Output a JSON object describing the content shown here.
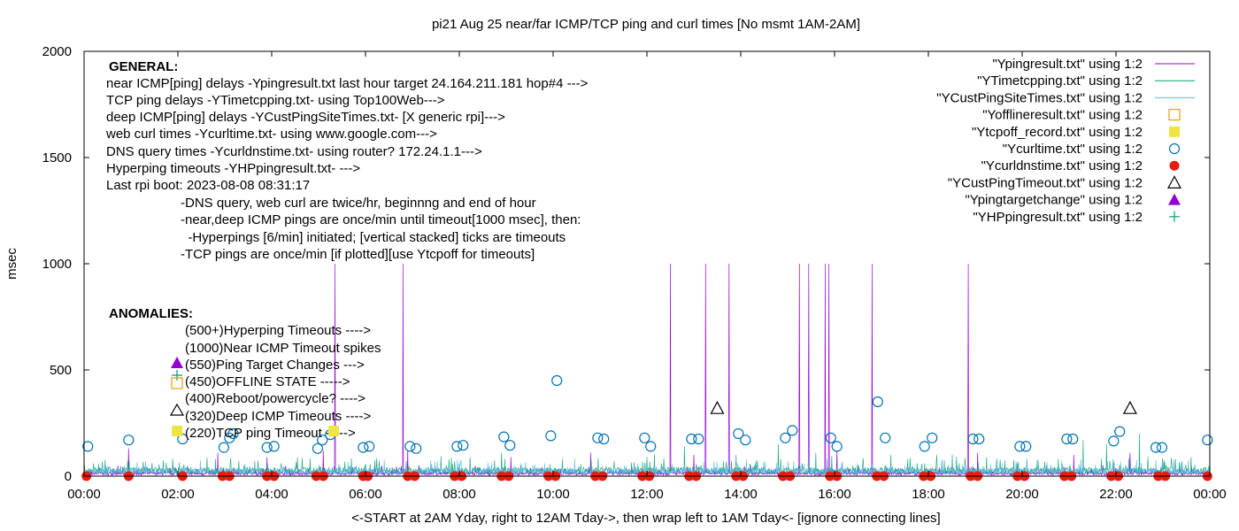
{
  "chart_data": {
    "type": "line",
    "title": "pi21 Aug 25  near/far ICMP/TCP ping and curl times [No msmt 1AM-2AM]",
    "xlabel": "<-START at 2AM Yday, right to 12AM Tday->, then wrap left to 1AM Tday<- [ignore connecting lines]",
    "ylabel": "msec",
    "xlim": [
      0,
      24
    ],
    "ylim": [
      0,
      2000
    ],
    "x_ticks": [
      "00:00",
      "02:00",
      "04:00",
      "06:00",
      "08:00",
      "10:00",
      "12:00",
      "14:00",
      "16:00",
      "18:00",
      "20:00",
      "22:00",
      "00:00"
    ],
    "y_ticks": [
      "0",
      "500",
      "1000",
      "1500",
      "2000"
    ],
    "legend_position": "top-right",
    "series": [
      {
        "name": "\"Ypingresult.txt\" using 1:2",
        "color": "#9400d3",
        "style": "line",
        "baseline": 15,
        "spikes": [
          [
            0.95,
            130
          ],
          [
            2.85,
            110
          ],
          [
            3.9,
            90
          ],
          [
            5.1,
            120
          ],
          [
            5.35,
            1000
          ],
          [
            6.8,
            1000
          ],
          [
            6.9,
            120
          ],
          [
            9.1,
            90
          ],
          [
            10.8,
            110
          ],
          [
            12.5,
            1000
          ],
          [
            13.0,
            100
          ],
          [
            13.25,
            1000
          ],
          [
            13.75,
            1000
          ],
          [
            15.25,
            1000
          ],
          [
            15.45,
            1000
          ],
          [
            15.8,
            1000
          ],
          [
            15.88,
            1000
          ],
          [
            16.05,
            120
          ],
          [
            16.8,
            1000
          ],
          [
            18.85,
            1000
          ],
          [
            19.05,
            110
          ],
          [
            21.1,
            100
          ],
          [
            22.3,
            110
          ]
        ]
      },
      {
        "name": "\"YTimetcpping.txt\" using 1:2",
        "color": "#009e73",
        "style": "line",
        "baseline": 30,
        "spikes": [
          [
            0.2,
            60
          ],
          [
            1.6,
            55
          ],
          [
            2.8,
            80
          ],
          [
            3.3,
            70
          ],
          [
            4.2,
            60
          ],
          [
            6.2,
            75
          ],
          [
            7.9,
            70
          ],
          [
            8.9,
            110
          ],
          [
            10.2,
            80
          ],
          [
            11.3,
            70
          ],
          [
            12.8,
            140
          ],
          [
            13.9,
            100
          ],
          [
            14.8,
            150
          ],
          [
            15.6,
            110
          ],
          [
            17.2,
            100
          ],
          [
            18.6,
            90
          ],
          [
            20.1,
            80
          ],
          [
            21.3,
            170
          ],
          [
            21.8,
            150
          ],
          [
            22.5,
            200
          ],
          [
            23.6,
            90
          ]
        ]
      },
      {
        "name": "\"YCustPingSiteTimes.txt\" using 1:2",
        "color": "#56b4e9",
        "style": "line",
        "baseline": 25,
        "spikes": [
          [
            1.0,
            40
          ],
          [
            5.8,
            50
          ],
          [
            12.2,
            45
          ],
          [
            17.5,
            50
          ],
          [
            21.0,
            45
          ]
        ]
      },
      {
        "name": "\"Yofflineresult.txt\" using 1:2",
        "color": "#e69f00",
        "style": "open-square",
        "points": []
      },
      {
        "name": "\"Ytcpoff_record.txt\" using 1:2",
        "color": "#f0e442",
        "style": "filled-square",
        "points": []
      },
      {
        "name": "\"Ycurltime.txt\" using 1:2",
        "color": "#0072b2",
        "style": "open-circle",
        "points": [
          [
            0.08,
            140
          ],
          [
            0.95,
            170
          ],
          [
            2.1,
            175
          ],
          [
            2.98,
            135
          ],
          [
            3.1,
            180
          ],
          [
            3.18,
            200
          ],
          [
            3.9,
            135
          ],
          [
            4.05,
            140
          ],
          [
            4.98,
            130
          ],
          [
            5.08,
            170
          ],
          [
            5.25,
            195
          ],
          [
            5.95,
            135
          ],
          [
            6.08,
            140
          ],
          [
            6.95,
            140
          ],
          [
            7.08,
            130
          ],
          [
            7.95,
            140
          ],
          [
            8.08,
            145
          ],
          [
            8.95,
            185
          ],
          [
            9.08,
            145
          ],
          [
            9.95,
            190
          ],
          [
            10.08,
            450
          ],
          [
            10.95,
            180
          ],
          [
            11.08,
            175
          ],
          [
            11.95,
            180
          ],
          [
            12.08,
            140
          ],
          [
            12.95,
            175
          ],
          [
            13.1,
            175
          ],
          [
            13.95,
            200
          ],
          [
            14.1,
            170
          ],
          [
            14.95,
            180
          ],
          [
            15.1,
            215
          ],
          [
            15.92,
            180
          ],
          [
            16.05,
            140
          ],
          [
            16.92,
            350
          ],
          [
            17.08,
            180
          ],
          [
            17.92,
            140
          ],
          [
            18.08,
            180
          ],
          [
            18.95,
            175
          ],
          [
            19.08,
            175
          ],
          [
            19.95,
            140
          ],
          [
            20.08,
            140
          ],
          [
            20.95,
            175
          ],
          [
            21.08,
            175
          ],
          [
            21.95,
            165
          ],
          [
            22.08,
            210
          ],
          [
            22.85,
            135
          ],
          [
            22.98,
            135
          ],
          [
            23.95,
            170
          ]
        ]
      },
      {
        "name": "\"Ycurldnstime.txt\" using 1:2",
        "color": "#e51e10",
        "style": "filled-circle",
        "points": [
          [
            0.05,
            0
          ],
          [
            0.95,
            0
          ],
          [
            2.1,
            0
          ],
          [
            2.95,
            0
          ],
          [
            3.1,
            0
          ],
          [
            3.9,
            0
          ],
          [
            4.05,
            0
          ],
          [
            4.95,
            0
          ],
          [
            5.1,
            0
          ],
          [
            5.95,
            0
          ],
          [
            6.05,
            0
          ],
          [
            6.9,
            0
          ],
          [
            7.05,
            0
          ],
          [
            7.9,
            0
          ],
          [
            8.05,
            0
          ],
          [
            8.9,
            0
          ],
          [
            9.05,
            0
          ],
          [
            9.9,
            0
          ],
          [
            10.05,
            0
          ],
          [
            10.9,
            0
          ],
          [
            11.05,
            0
          ],
          [
            11.9,
            0
          ],
          [
            12.05,
            0
          ],
          [
            12.9,
            0
          ],
          [
            13.05,
            0
          ],
          [
            13.9,
            0
          ],
          [
            14.05,
            0
          ],
          [
            14.9,
            0
          ],
          [
            15.05,
            0
          ],
          [
            15.9,
            0
          ],
          [
            16.05,
            0
          ],
          [
            16.9,
            0
          ],
          [
            17.05,
            0
          ],
          [
            17.9,
            0
          ],
          [
            18.05,
            0
          ],
          [
            18.9,
            0
          ],
          [
            19.05,
            0
          ],
          [
            19.9,
            0
          ],
          [
            20.05,
            0
          ],
          [
            20.9,
            0
          ],
          [
            21.05,
            0
          ],
          [
            21.9,
            0
          ],
          [
            22.05,
            0
          ],
          [
            22.9,
            0
          ],
          [
            23.05,
            0
          ],
          [
            23.95,
            0
          ]
        ]
      },
      {
        "name": "\"YCustPingTimeout.txt\" using 1:2",
        "color": "#000000",
        "style": "open-triangle",
        "points": [
          [
            13.5,
            320
          ],
          [
            22.3,
            320
          ]
        ]
      },
      {
        "name": "\"Ypingtargetchange\" using 1:2",
        "color": "#9400d3",
        "style": "filled-triangle",
        "points": []
      },
      {
        "name": "\"YHPpingresult.txt\" using 1:2",
        "color": "#009e73",
        "style": "plus",
        "points": []
      }
    ],
    "annotations": {
      "general_header": "GENERAL:",
      "general_lines": [
        "near ICMP[ping] delays -Ypingresult.txt last hour target 24.164.211.181 hop#4 --->",
        "TCP ping delays -YTimetcpping.txt- using Top100Web--->",
        "deep ICMP[ping] delays -YCustPingSiteTimes.txt- [X generic rpi]--->",
        "web curl times -Ycurltime.txt- using www.google.com--->",
        "DNS query times -Ycurldnstime.txt- using router? 172.24.1.1--->",
        "Hyperping timeouts -YHPpingresult.txt- --->",
        "Last rpi boot: 2023-08-08 08:31:17"
      ],
      "indented_lines": [
        "-DNS query, web curl are twice/hr, beginnng and end of hour",
        "-near,deep ICMP pings are once/min until timeout[1000 msec], then:",
        "  -Hyperpings [6/min] initiated; [vertical stacked] ticks are timeouts",
        "-TCP pings are once/min [if plotted][use Ytcpoff for timeouts]"
      ],
      "anomalies_header": "ANOMALIES:",
      "anomaly_lines": [
        "(500+)Hyperping Timeouts ---->",
        "(1000)Near ICMP Timeout spikes",
        "(550)Ping Target Changes --->",
        "(450)OFFLINE STATE ----->",
        "(400)Reboot/powercycle? ---->",
        "(320)Deep ICMP Timeouts ---->",
        "(220)TCP ping Timeout ----->"
      ]
    }
  }
}
